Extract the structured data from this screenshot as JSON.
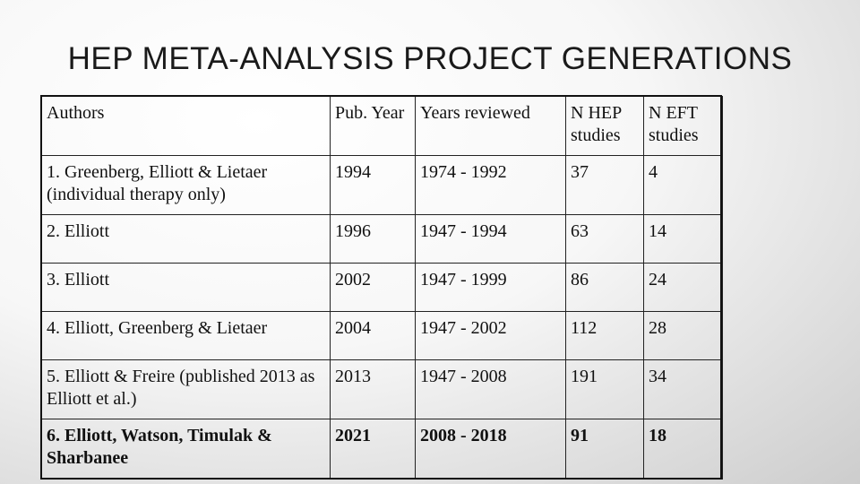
{
  "title": "HEP META-ANALYSIS PROJECT GENERATIONS",
  "table": {
    "headers": [
      "Authors",
      "Pub. Year",
      "Years reviewed",
      "N HEP studies",
      "N EFT studies"
    ],
    "rows": [
      {
        "authors": "1. Greenberg, Elliott & Lietaer (individual therapy only)",
        "pub_year": "1994",
        "years_reviewed": "1974 - 1992",
        "n_hep": "37",
        "n_eft": "4",
        "bold": false
      },
      {
        "authors": "2. Elliott",
        "pub_year": "1996",
        "years_reviewed": "1947 - 1994",
        "n_hep": "63",
        "n_eft": "14",
        "bold": false
      },
      {
        "authors": "3. Elliott",
        "pub_year": "2002",
        "years_reviewed": "1947 - 1999",
        "n_hep": "86",
        "n_eft": "24",
        "bold": false
      },
      {
        "authors": "4. Elliott, Greenberg & Lietaer",
        "pub_year": "2004",
        "years_reviewed": "1947 - 2002",
        "n_hep": "112",
        "n_eft": "28",
        "bold": false
      },
      {
        "authors": "5. Elliott & Freire (published 2013 as Elliott et al.)",
        "pub_year": "2013",
        "years_reviewed": "1947 - 2008",
        "n_hep": "191",
        "n_eft": "34",
        "bold": false
      },
      {
        "authors": "6. Elliott, Watson, Timulak & Sharbanee",
        "pub_year": "2021",
        "years_reviewed": "2008 - 2018",
        "n_hep": "91",
        "n_eft": "18",
        "bold": true
      }
    ]
  }
}
